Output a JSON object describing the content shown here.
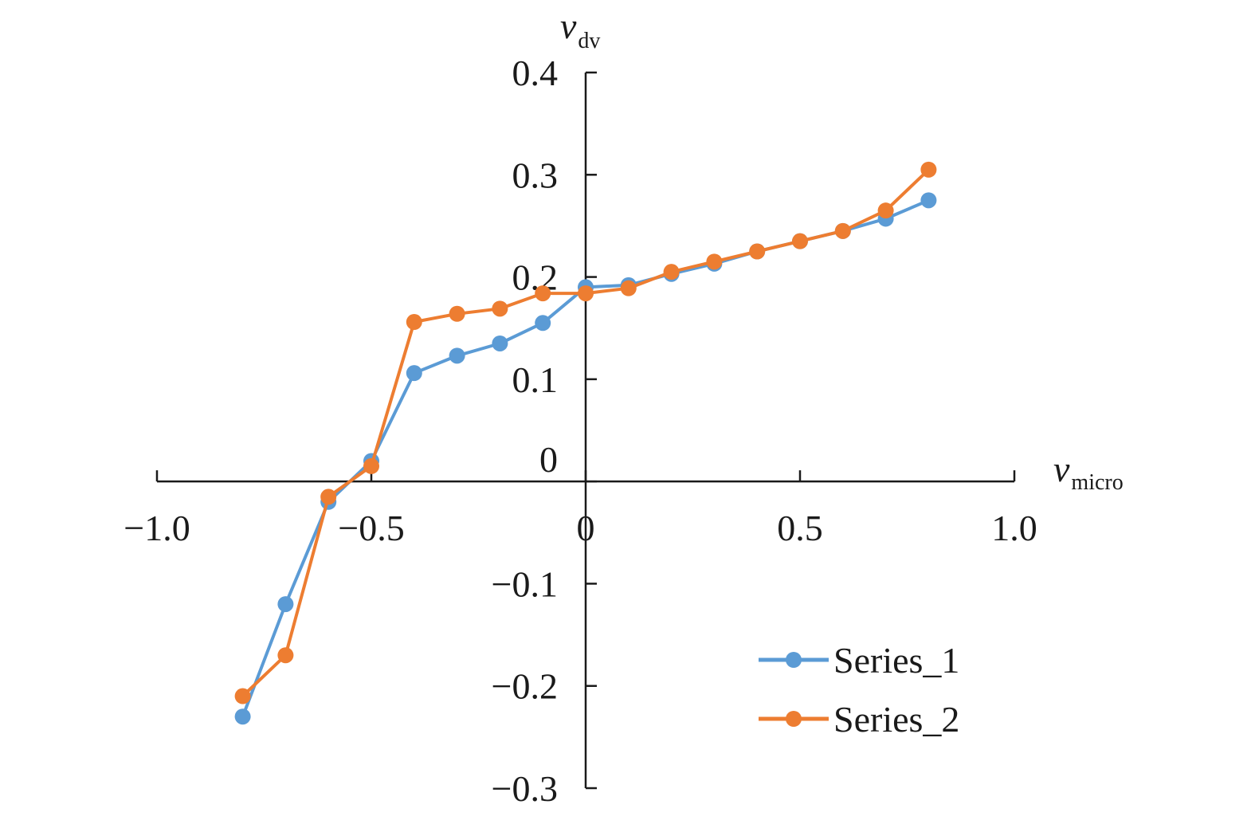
{
  "chart_data": {
    "type": "line",
    "xlabel": {
      "var": "v",
      "sub": "micro"
    },
    "ylabel": {
      "var": "v",
      "sub": "dv"
    },
    "xlim": [
      -1.0,
      1.0
    ],
    "ylim": [
      -0.3,
      0.4
    ],
    "x_ticks": [
      -1.0,
      -0.5,
      0,
      0.5,
      1.0
    ],
    "x_tick_labels": [
      "−1.0",
      "−0.5",
      "0",
      "0.5",
      "1.0"
    ],
    "y_ticks": [
      -0.3,
      -0.2,
      -0.1,
      0,
      0.1,
      0.2,
      0.3,
      0.4
    ],
    "y_tick_labels": [
      "−0.3",
      "−0.2",
      "−0.1",
      "0",
      "0.1",
      "0.2",
      "0.3",
      "0.4"
    ],
    "grid": false,
    "legend_position": "bottom-right",
    "series": [
      {
        "name": "Series_1",
        "color": "#5B9BD5",
        "x": [
          -0.8,
          -0.7,
          -0.6,
          -0.5,
          -0.4,
          -0.3,
          -0.2,
          -0.1,
          0,
          0.1,
          0.2,
          0.3,
          0.4,
          0.5,
          0.6,
          0.7,
          0.8
        ],
        "y": [
          -0.23,
          -0.12,
          -0.02,
          0.02,
          0.106,
          0.123,
          0.135,
          0.155,
          0.19,
          0.192,
          0.203,
          0.213,
          0.225,
          0.235,
          0.245,
          0.257,
          0.275
        ]
      },
      {
        "name": "Series_2",
        "color": "#ED7D31",
        "x": [
          -0.8,
          -0.7,
          -0.6,
          -0.5,
          -0.4,
          -0.3,
          -0.2,
          -0.1,
          0,
          0.1,
          0.2,
          0.3,
          0.4,
          0.5,
          0.6,
          0.7,
          0.8
        ],
        "y": [
          -0.21,
          -0.17,
          -0.015,
          0.015,
          0.156,
          0.164,
          0.169,
          0.184,
          0.184,
          0.189,
          0.205,
          0.215,
          0.225,
          0.235,
          0.245,
          0.265,
          0.305
        ]
      }
    ]
  }
}
